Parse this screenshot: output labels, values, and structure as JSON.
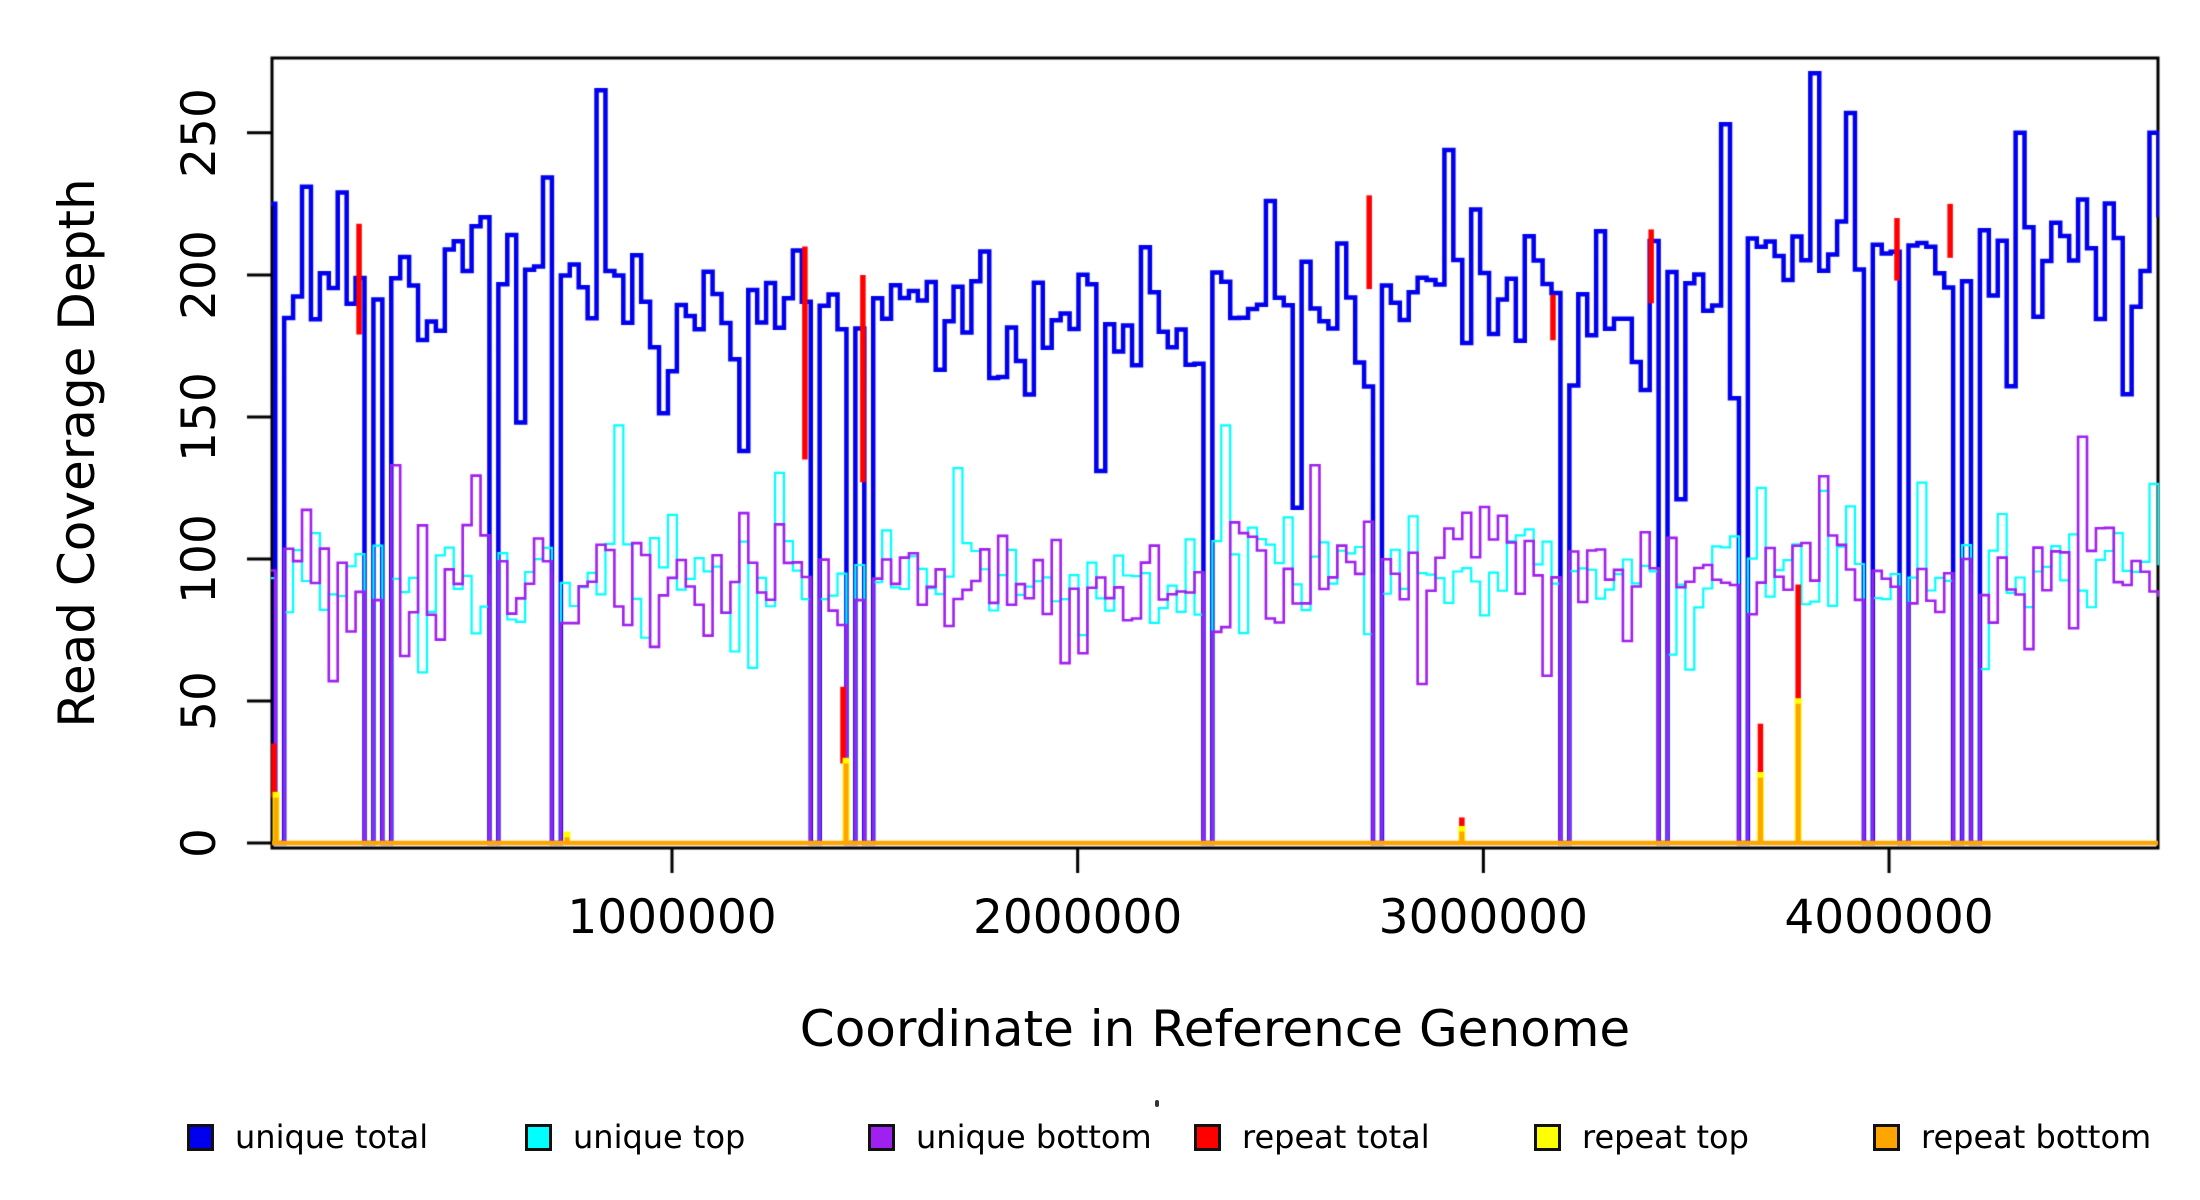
{
  "chart_data": {
    "type": "line",
    "subtype": "step-coverage",
    "title": "",
    "xlabel": "Coordinate in Reference Genome",
    "ylabel": "Read Coverage Depth",
    "xlim": [
      14000,
      4663000
    ],
    "ylim": [
      0,
      276
    ],
    "x_ticks": [
      1000000,
      2000000,
      3000000,
      4000000
    ],
    "x_tick_labels": [
      "1000000",
      "2000000",
      "3000000",
      "4000000"
    ],
    "y_ticks": [
      0,
      50,
      100,
      150,
      200,
      250
    ],
    "y_tick_labels": [
      "0",
      "50",
      "100",
      "150",
      "200",
      "250"
    ],
    "grid": false,
    "legend_position": "bottom",
    "bin_size": 22000,
    "seed": 7,
    "series": [
      {
        "name": "unique total",
        "color": "#0000EE",
        "line_width": 4.5,
        "mean": 193,
        "noise_amp": 26,
        "clamp": [
          142,
          250
        ],
        "trend": [
          [
            0,
            192
          ],
          [
            0.1,
            197
          ],
          [
            0.22,
            188
          ],
          [
            0.35,
            186
          ],
          [
            0.48,
            183
          ],
          [
            0.58,
            190
          ],
          [
            0.68,
            193
          ],
          [
            0.78,
            198
          ],
          [
            0.855,
            210
          ],
          [
            0.93,
            206
          ],
          [
            1,
            207
          ]
        ]
      },
      {
        "name": "unique top",
        "color": "#00FFFF",
        "line_width": 2.2,
        "mean": 95,
        "noise_amp": 23,
        "clamp": [
          58,
          132
        ],
        "trend": [
          [
            0,
            93
          ],
          [
            0.5,
            94
          ],
          [
            1,
            99
          ]
        ]
      },
      {
        "name": "unique bottom",
        "color": "#A020F0",
        "line_width": 2.6,
        "mean": 93,
        "noise_amp": 25,
        "clamp": [
          56,
          133
        ],
        "trend": [
          [
            0,
            92
          ],
          [
            0.5,
            93
          ],
          [
            1,
            98
          ]
        ]
      },
      {
        "name": "repeat total",
        "color": "#FF0000",
        "line_width": 5.5
      },
      {
        "name": "repeat top",
        "color": "#FFFF00",
        "line_width": 7
      },
      {
        "name": "repeat bottom",
        "color": "#FFA500",
        "line_width": 5
      }
    ],
    "repeat_dropouts": [
      24000,
      236000,
      288000,
      549000,
      699000,
      1335000,
      1429000,
      1478000,
      2316000,
      2726000,
      3179000,
      3421000,
      3630000,
      3933000,
      4027000,
      4158000,
      4205000
    ],
    "repeat_total_spikes": [
      {
        "x": 24000,
        "lo": 16,
        "hi": 35,
        "offset": -2
      },
      {
        "x": 236000,
        "lo": 179,
        "hi": 218,
        "offset": -3
      },
      {
        "x": 741000,
        "lo": 0,
        "hi": 3,
        "offset": 0
      },
      {
        "x": 1335000,
        "lo": 135,
        "hi": 210,
        "offset": -3
      },
      {
        "x": 1429000,
        "lo": 28,
        "hi": 55,
        "offset": -3
      },
      {
        "x": 1478000,
        "lo": 127,
        "hi": 200,
        "offset": -3
      },
      {
        "x": 2726000,
        "lo": 195,
        "hi": 228,
        "offset": -3
      },
      {
        "x": 2947000,
        "lo": 4,
        "hi": 9,
        "offset": 0
      },
      {
        "x": 3179000,
        "lo": 177,
        "hi": 193,
        "offset": -3
      },
      {
        "x": 3421000,
        "lo": 190,
        "hi": 216,
        "offset": -3
      },
      {
        "x": 3683000,
        "lo": 23,
        "hi": 42,
        "offset": 0
      },
      {
        "x": 3776000,
        "lo": 49,
        "hi": 91,
        "offset": 0
      },
      {
        "x": 4027000,
        "lo": 198,
        "hi": 220,
        "offset": -3
      },
      {
        "x": 4158000,
        "lo": 206,
        "hi": 225,
        "offset": -3
      }
    ],
    "repeat_bottom_spikes": [
      {
        "x": 24000,
        "h": 16
      },
      {
        "x": 741000,
        "h": 2
      },
      {
        "x": 1429000,
        "h": 28
      },
      {
        "x": 2947000,
        "h": 4
      },
      {
        "x": 3683000,
        "h": 23
      },
      {
        "x": 3776000,
        "h": 49
      }
    ],
    "unique_total_peaks": [
      {
        "x": 8000,
        "v": 225
      },
      {
        "x": 97000,
        "v": 231
      },
      {
        "x": 169000,
        "v": 229
      },
      {
        "x": 810000,
        "v": 265
      },
      {
        "x": 2469000,
        "v": 226
      },
      {
        "x": 2913000,
        "v": 244
      },
      {
        "x": 3593000,
        "v": 253
      },
      {
        "x": 3810000,
        "v": 271
      },
      {
        "x": 3904000,
        "v": 257
      }
    ],
    "unique_total_dips": [
      {
        "x": 625000,
        "v": 148
      },
      {
        "x": 1165000,
        "v": 138
      },
      {
        "x": 2043000,
        "v": 131
      },
      {
        "x": 2521000,
        "v": 118
      },
      {
        "x": 3485000,
        "v": 121
      },
      {
        "x": 4570000,
        "v": 158
      }
    ],
    "unique_strand_accents": [
      {
        "series": 1,
        "x": 862000,
        "v": 147
      },
      {
        "series": 1,
        "x": 2356000,
        "v": 147
      },
      {
        "series": 2,
        "x": 157000,
        "v": 57
      },
      {
        "series": 2,
        "x": 2573000,
        "v": 133
      },
      {
        "series": 2,
        "x": 4459000,
        "v": 143
      }
    ],
    "baseline_value": 0,
    "axis_color": "#000000",
    "background_color": "#FFFFFF"
  },
  "legend": {
    "items": [
      {
        "label": "unique total",
        "color": "#0000EE",
        "x": 187
      },
      {
        "label": "unique top",
        "color": "#00FFFF",
        "x": 525
      },
      {
        "label": "unique bottom",
        "color": "#A020F0",
        "x": 868
      },
      {
        "label": "repeat total",
        "color": "#FF0000",
        "x": 1194
      },
      {
        "label": "repeat top",
        "color": "#FFFF00",
        "x": 1534
      },
      {
        "label": "repeat bottom",
        "color": "#FFA500",
        "x": 1873
      }
    ]
  },
  "titles": {
    "x_axis": "Coordinate in Reference Genome",
    "y_axis": "Read Coverage Depth"
  }
}
